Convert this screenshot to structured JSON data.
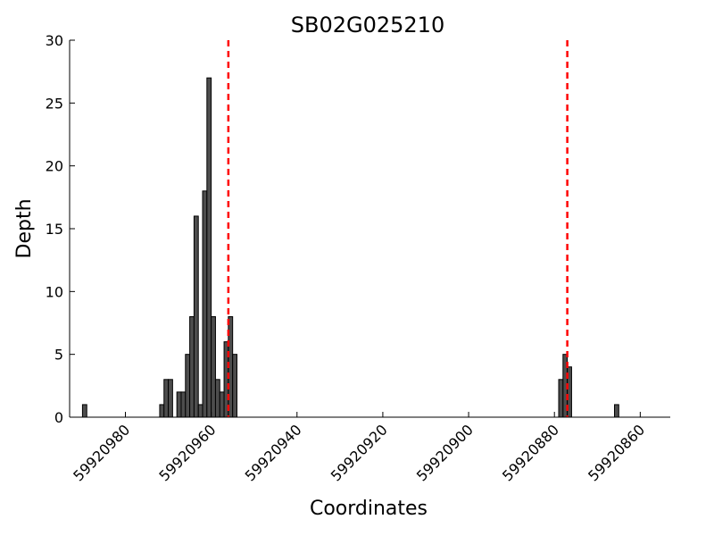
{
  "chart_data": {
    "type": "bar",
    "title": "SB02G025210",
    "xlabel": "Coordinates",
    "ylabel": "Depth",
    "x_reversed": true,
    "xlim": [
      59920993,
      59920853
    ],
    "ylim": [
      0,
      30
    ],
    "x_ticks": [
      59920980,
      59920960,
      59920940,
      59920920,
      59920900,
      59920880,
      59920860
    ],
    "y_ticks": [
      0,
      5,
      10,
      15,
      20,
      25,
      30
    ],
    "bar_color": "#4d4d4d",
    "bar_edge_color": "#000000",
    "reference_line_color": "#ff0000",
    "reference_lines": [
      59920956,
      59920877
    ],
    "grid": false,
    "bars": [
      {
        "x": 59920989,
        "depth": 1
      },
      {
        "x": 59920971,
        "depth": 1
      },
      {
        "x": 59920970,
        "depth": 3
      },
      {
        "x": 59920969,
        "depth": 3
      },
      {
        "x": 59920967,
        "depth": 2
      },
      {
        "x": 59920966,
        "depth": 2
      },
      {
        "x": 59920965,
        "depth": 5
      },
      {
        "x": 59920964,
        "depth": 8
      },
      {
        "x": 59920963,
        "depth": 16
      },
      {
        "x": 59920962,
        "depth": 1
      },
      {
        "x": 59920961,
        "depth": 18
      },
      {
        "x": 59920960,
        "depth": 27
      },
      {
        "x": 59920959,
        "depth": 8
      },
      {
        "x": 59920958,
        "depth": 3
      },
      {
        "x": 59920957,
        "depth": 2
      },
      {
        "x": 59920956,
        "depth": 6
      },
      {
        "x": 59920955,
        "depth": 8
      },
      {
        "x": 59920954,
        "depth": 5
      },
      {
        "x": 59920878,
        "depth": 3
      },
      {
        "x": 59920877,
        "depth": 5
      },
      {
        "x": 59920876,
        "depth": 4
      },
      {
        "x": 59920865,
        "depth": 1
      }
    ]
  }
}
